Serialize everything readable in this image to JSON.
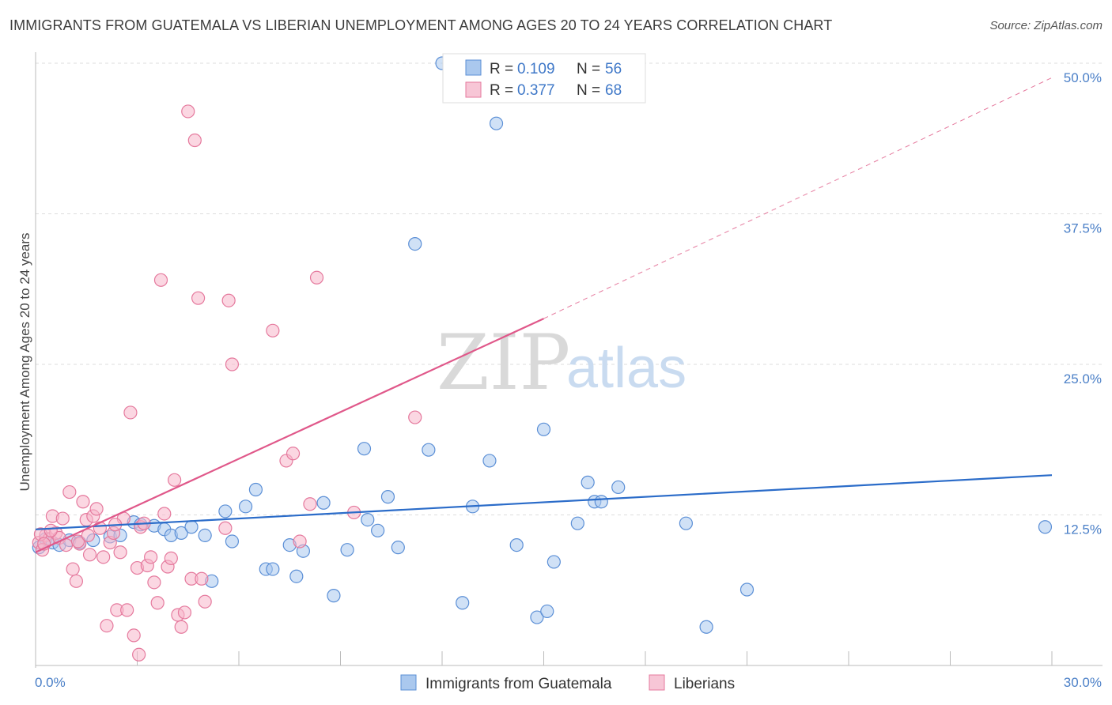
{
  "title": "IMMIGRANTS FROM GUATEMALA VS LIBERIAN UNEMPLOYMENT AMONG AGES 20 TO 24 YEARS CORRELATION CHART",
  "source": "Source: ZipAtlas.com",
  "watermark": {
    "zip": "ZIP",
    "atlas": "atlas"
  },
  "colors": {
    "blue_fill": "#aac8ee",
    "blue_stroke": "#5b8fd6",
    "blue_line": "#2b6cc9",
    "pink_fill": "#f7b6cb",
    "pink_stroke": "#e5799d",
    "pink_line": "#e0588a",
    "grid": "#dddddd",
    "axis": "#bbbbbb",
    "tick_text": "#4a7fc7"
  },
  "legend": {
    "series1": {
      "r_label": "R = ",
      "r_value": "0.109",
      "n_label": "N = ",
      "n_value": "56"
    },
    "series2": {
      "r_label": "R = ",
      "r_value": "0.377",
      "n_label": "N = ",
      "n_value": "68"
    }
  },
  "chart_data": {
    "type": "scatter",
    "title": "IMMIGRANTS FROM GUATEMALA VS LIBERIAN UNEMPLOYMENT AMONG AGES 20 TO 24 YEARS CORRELATION CHART",
    "xlabel": "",
    "ylabel": "Unemployment Among Ages 20 to 24 years",
    "xlim": [
      0,
      30
    ],
    "ylim": [
      0,
      50
    ],
    "x_ticks": [
      "0.0%",
      "30.0%"
    ],
    "y_ticks": [
      {
        "value": 12.5,
        "label": "12.5%"
      },
      {
        "value": 25.0,
        "label": "25.0%"
      },
      {
        "value": 37.5,
        "label": "37.5%"
      },
      {
        "value": 50.0,
        "label": "50.0%"
      }
    ],
    "grid": true,
    "legend_position": "top-center",
    "series": [
      {
        "name": "Immigrants from Guatemala",
        "color": "blue",
        "R": 0.109,
        "N": 56,
        "trend": {
          "x0": 0,
          "y0": 11.3,
          "x1": 30,
          "y1": 15.8,
          "dashed_beyond": null
        },
        "points": [
          [
            0.1,
            9.8
          ],
          [
            0.3,
            10.5
          ],
          [
            0.5,
            10.2
          ],
          [
            0.7,
            10.0
          ],
          [
            1.0,
            10.4
          ],
          [
            1.3,
            10.2
          ],
          [
            1.7,
            10.4
          ],
          [
            2.2,
            10.7
          ],
          [
            2.5,
            10.8
          ],
          [
            2.9,
            11.9
          ],
          [
            3.1,
            11.7
          ],
          [
            3.5,
            11.6
          ],
          [
            3.8,
            11.3
          ],
          [
            4.0,
            10.8
          ],
          [
            4.3,
            11.0
          ],
          [
            4.6,
            11.5
          ],
          [
            5.0,
            10.8
          ],
          [
            5.2,
            7.0
          ],
          [
            5.6,
            12.8
          ],
          [
            5.8,
            10.3
          ],
          [
            6.2,
            13.2
          ],
          [
            6.5,
            14.6
          ],
          [
            6.8,
            8.0
          ],
          [
            7.0,
            8.0
          ],
          [
            7.5,
            10.0
          ],
          [
            7.7,
            7.4
          ],
          [
            7.9,
            9.5
          ],
          [
            8.5,
            13.5
          ],
          [
            8.8,
            5.8
          ],
          [
            9.2,
            9.6
          ],
          [
            9.7,
            18.0
          ],
          [
            9.8,
            12.1
          ],
          [
            10.1,
            11.2
          ],
          [
            10.4,
            14.0
          ],
          [
            10.7,
            9.8
          ],
          [
            11.2,
            35.0
          ],
          [
            11.6,
            17.9
          ],
          [
            12.0,
            50.0
          ],
          [
            12.6,
            5.2
          ],
          [
            12.9,
            13.2
          ],
          [
            13.4,
            17.0
          ],
          [
            13.6,
            45.0
          ],
          [
            14.2,
            10.0
          ],
          [
            14.8,
            4.0
          ],
          [
            15.0,
            19.6
          ],
          [
            15.1,
            4.5
          ],
          [
            15.3,
            8.6
          ],
          [
            16.0,
            11.8
          ],
          [
            16.3,
            15.2
          ],
          [
            16.5,
            13.6
          ],
          [
            16.7,
            13.6
          ],
          [
            17.2,
            14.8
          ],
          [
            19.2,
            11.8
          ],
          [
            19.8,
            3.2
          ],
          [
            21.0,
            6.3
          ],
          [
            29.8,
            11.5
          ]
        ]
      },
      {
        "name": "Liberians",
        "color": "pink",
        "R": 0.377,
        "N": 68,
        "trend": {
          "x0": 0,
          "y0": 9.4,
          "x1": 15.0,
          "y1": 28.8,
          "dash_to_x": 30,
          "dash_to_y": 48.8
        },
        "points": [
          [
            0.1,
            10.2
          ],
          [
            0.2,
            9.6
          ],
          [
            0.3,
            10.8
          ],
          [
            0.4,
            10.5
          ],
          [
            0.5,
            12.4
          ],
          [
            0.6,
            11.0
          ],
          [
            0.7,
            10.6
          ],
          [
            0.8,
            12.2
          ],
          [
            0.9,
            10.0
          ],
          [
            1.0,
            14.4
          ],
          [
            1.1,
            8.0
          ],
          [
            1.2,
            7.0
          ],
          [
            1.3,
            10.1
          ],
          [
            1.4,
            13.6
          ],
          [
            1.5,
            12.1
          ],
          [
            1.6,
            9.2
          ],
          [
            1.7,
            12.4
          ],
          [
            1.8,
            13.0
          ],
          [
            1.9,
            11.4
          ],
          [
            2.0,
            9.0
          ],
          [
            2.1,
            3.3
          ],
          [
            2.2,
            10.2
          ],
          [
            2.3,
            11.0
          ],
          [
            2.4,
            4.6
          ],
          [
            2.5,
            9.4
          ],
          [
            2.6,
            12.2
          ],
          [
            2.7,
            4.6
          ],
          [
            2.8,
            21.0
          ],
          [
            2.9,
            2.5
          ],
          [
            3.0,
            8.1
          ],
          [
            3.1,
            11.5
          ],
          [
            3.2,
            11.8
          ],
          [
            3.3,
            8.3
          ],
          [
            3.4,
            9.0
          ],
          [
            3.5,
            6.9
          ],
          [
            3.6,
            5.2
          ],
          [
            3.7,
            32.0
          ],
          [
            3.8,
            12.6
          ],
          [
            3.9,
            8.2
          ],
          [
            4.0,
            8.9
          ],
          [
            4.1,
            15.4
          ],
          [
            4.2,
            4.2
          ],
          [
            4.3,
            3.2
          ],
          [
            4.4,
            4.4
          ],
          [
            4.5,
            46.0
          ],
          [
            4.6,
            7.2
          ],
          [
            4.7,
            43.6
          ],
          [
            4.8,
            30.5
          ],
          [
            4.9,
            7.2
          ],
          [
            5.0,
            5.3
          ],
          [
            5.6,
            11.4
          ],
          [
            5.7,
            30.3
          ],
          [
            5.8,
            25.0
          ],
          [
            7.0,
            27.8
          ],
          [
            7.4,
            17.0
          ],
          [
            7.6,
            17.6
          ],
          [
            7.8,
            10.3
          ],
          [
            8.1,
            13.4
          ],
          [
            8.3,
            32.2
          ],
          [
            9.4,
            12.7
          ],
          [
            11.2,
            20.6
          ],
          [
            0.15,
            10.9
          ],
          [
            0.45,
            11.2
          ],
          [
            1.25,
            10.3
          ],
          [
            1.55,
            10.8
          ],
          [
            2.35,
            11.7
          ],
          [
            3.05,
            0.9
          ],
          [
            0.25,
            10.1
          ]
        ]
      }
    ]
  },
  "bottom_legend": {
    "item1": "Immigrants from Guatemala",
    "item2": "Liberians"
  }
}
